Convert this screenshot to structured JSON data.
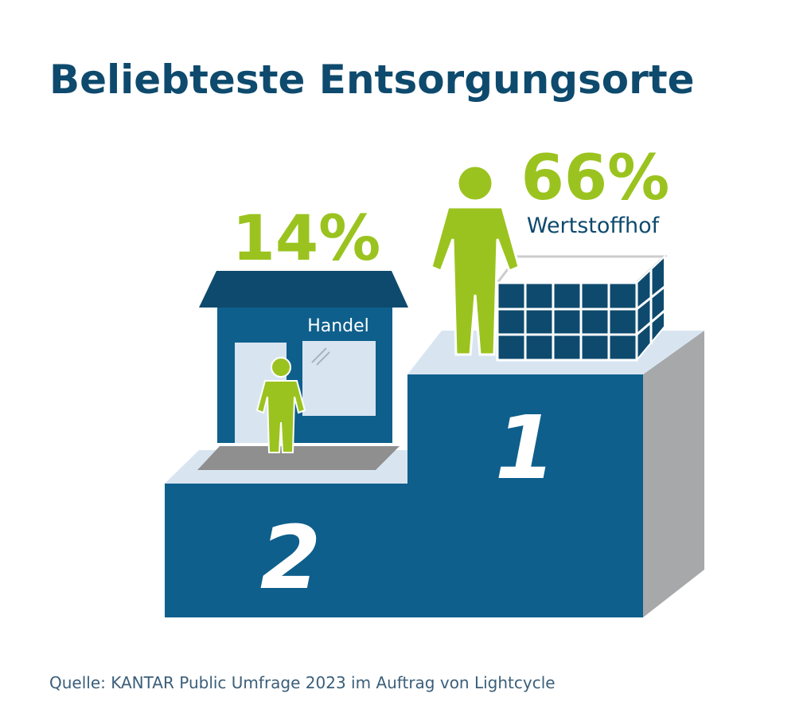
{
  "title": "Beliebteste Entsorgungsorte",
  "places": [
    {
      "rank": "1",
      "share": "66%",
      "label": "Wertstoffhof"
    },
    {
      "rank": "2",
      "share": "14%",
      "label": "Handel"
    }
  ],
  "source": "Quelle: KANTAR Public Umfrage 2023 im Auftrag von Lightcycle"
}
